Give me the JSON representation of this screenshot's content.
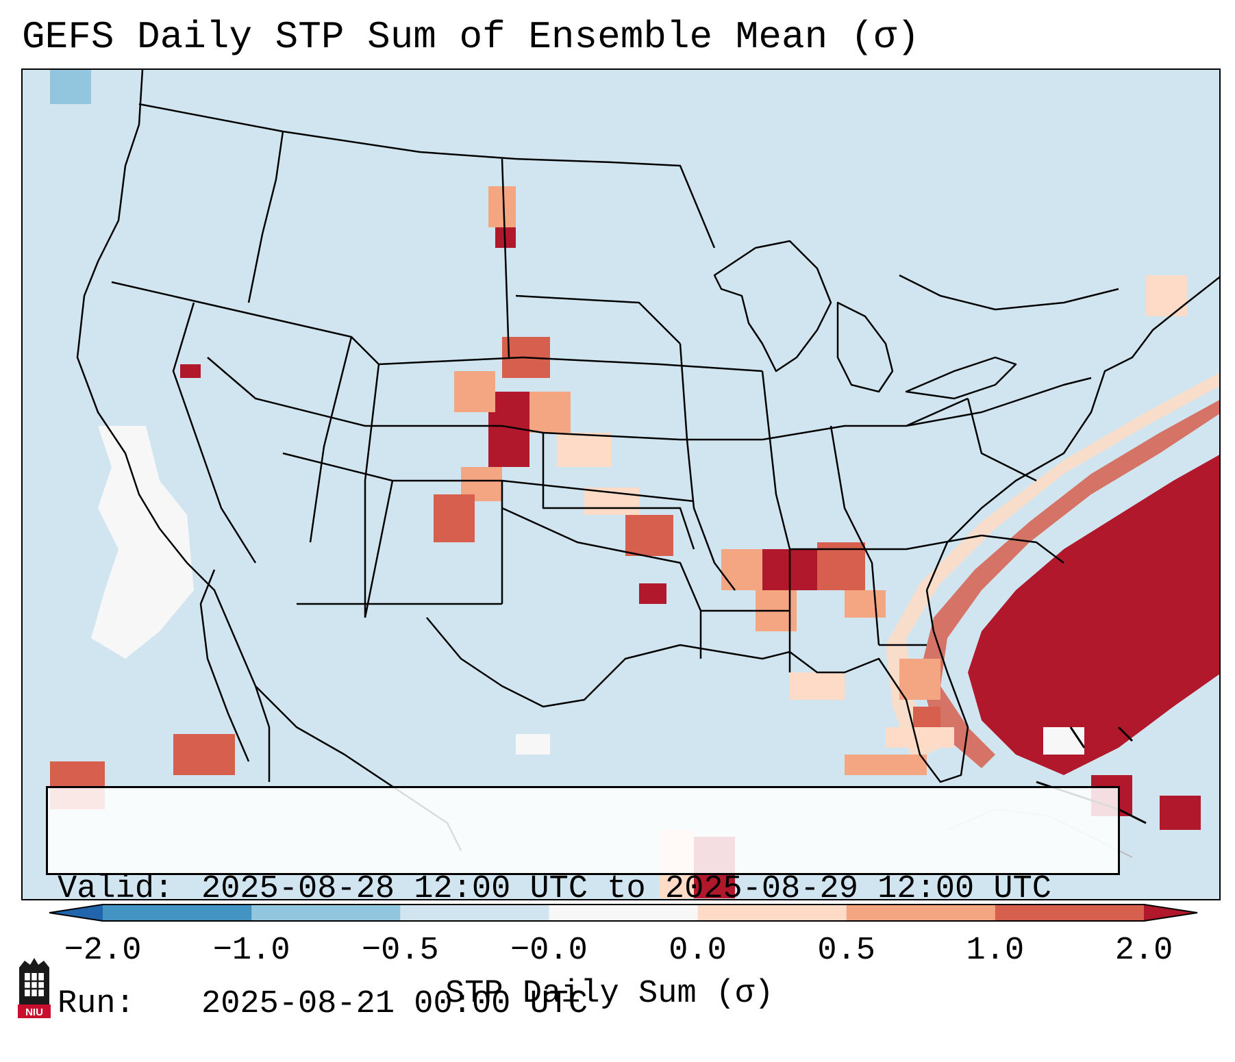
{
  "title": "GEFS Daily STP Sum of Ensemble Mean (σ)",
  "info": {
    "valid_label": "Valid:",
    "valid_value": "2025-08-28 12:00 UTC to 2025-08-29 12:00 UTC",
    "run_label": "Run:",
    "run_value": "2025-08-21 00:00 UTC"
  },
  "colorbar": {
    "title": "STP Daily Sum (σ)",
    "ticks": [
      "−2.0",
      "−1.0",
      "−0.5",
      "−0.0",
      "0.0",
      "0.5",
      "1.0",
      "2.0"
    ],
    "colors": [
      "#2166ac",
      "#4393c3",
      "#92c5de",
      "#d1e5f0",
      "#f7f7f7",
      "#fddbc7",
      "#f4a582",
      "#d6604d",
      "#b2182b"
    ]
  },
  "logo": {
    "text": "NIU"
  },
  "map": {
    "background_color": "#d1e5f0",
    "line_color": "#000000"
  }
}
